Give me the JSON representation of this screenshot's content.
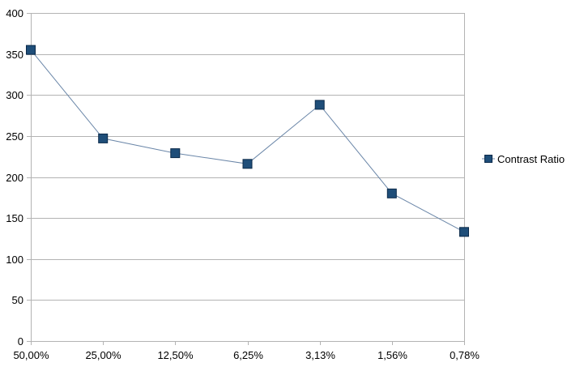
{
  "chart_data": {
    "type": "line",
    "title": "",
    "xlabel": "",
    "ylabel": "",
    "categories": [
      "50,00%",
      "25,00%",
      "12,50%",
      "6,25%",
      "3,13%",
      "1,56%",
      "0,78%"
    ],
    "series": [
      {
        "name": "Contrast Ratio",
        "values": [
          355,
          247,
          229,
          216,
          288,
          180,
          133
        ],
        "color": "#1f4e79"
      }
    ],
    "ylim": [
      0,
      400
    ],
    "yticks": [
      0,
      50,
      100,
      150,
      200,
      250,
      300,
      350,
      400
    ],
    "grid": true,
    "legend_position": "right",
    "line_color": "#6a86a8",
    "marker": "square"
  }
}
